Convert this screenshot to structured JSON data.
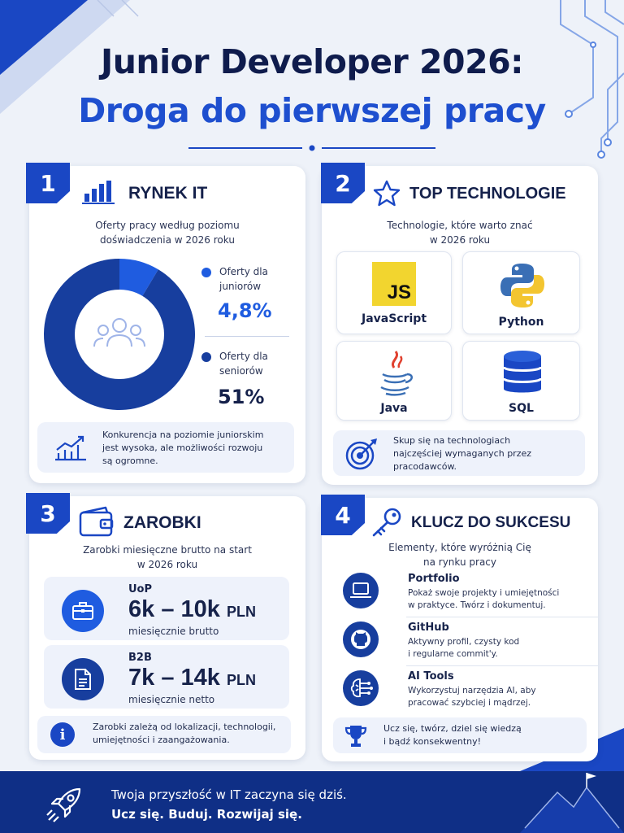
{
  "header": {
    "title_line1": "Junior Developer 2026:",
    "title_line2": "Droga do pierwszej pracy"
  },
  "colors": {
    "primary_blue": "#1a47c4",
    "navy": "#173e9e",
    "dark_text": "#0f1c4d",
    "accent_blue": "#1e4fcf",
    "footer_bg": "#0f2f86"
  },
  "section1": {
    "number": "1",
    "icon": "bar-chart-icon",
    "title": "RYNEK IT",
    "subtitle_line1": "Oferty pracy według poziomu",
    "subtitle_line2": "doświadczenia w 2026 roku",
    "chart_data": {
      "type": "pie",
      "categories": [
        "Oferty dla juniorów",
        "Oferty dla seniorów"
      ],
      "values": [
        4.8,
        51
      ],
      "value_labels": [
        "4,8%",
        "51%"
      ],
      "colors": [
        "#1f5ce0",
        "#173e9e"
      ]
    },
    "legend": [
      {
        "label_line1": "Oferty dla",
        "label_line2": "juniorów",
        "value": "4,8%",
        "color": "#1f5ce0"
      },
      {
        "label_line1": "Oferty dla",
        "label_line2": "seniorów",
        "value": "51%",
        "color": "#173e9e"
      }
    ],
    "note_icon": "trend-up-icon",
    "note_line1": "Konkurencja na poziomie juniorskim",
    "note_line2": "jest wysoka, ale możliwości rozwoju",
    "note_line3": "są ogromne."
  },
  "section2": {
    "number": "2",
    "icon": "star-icon",
    "title": "TOP TECHNOLOGIE",
    "subtitle_line1": "Technologie, które warto znać",
    "subtitle_line2": "w 2026 roku",
    "tech": [
      {
        "name": "JavaScript",
        "icon": "javascript-logo-icon",
        "logo_text": "JS"
      },
      {
        "name": "Python",
        "icon": "python-logo-icon"
      },
      {
        "name": "Java",
        "icon": "java-logo-icon"
      },
      {
        "name": "SQL",
        "icon": "database-icon"
      }
    ],
    "note_icon": "target-icon",
    "note_line1": "Skup się na technologiach",
    "note_line2": "najczęściej wymaganych przez",
    "note_line3": "pracodawców."
  },
  "section3": {
    "number": "3",
    "icon": "wallet-icon",
    "title": "ZAROBKI",
    "subtitle_line1": "Zarobki miesięczne brutto na start",
    "subtitle_line2": "w 2026 roku",
    "pay": [
      {
        "type": "UoP",
        "value": "6k – 10k",
        "currency": "PLN",
        "note": "miesięcznie brutto",
        "icon": "briefcase-icon"
      },
      {
        "type": "B2B",
        "value": "7k – 14k",
        "currency": "PLN",
        "note": "miesięcznie netto",
        "icon": "document-icon"
      }
    ],
    "note_icon": "info-icon",
    "note_line1": "Zarobki zależą od lokalizacji, technologii,",
    "note_line2": "umiejętności i zaangażowania."
  },
  "section4": {
    "number": "4",
    "icon": "key-icon",
    "title": "KLUCZ DO SUKCESU",
    "subtitle_line1": "Elementy, które wyróżnią Cię",
    "subtitle_line2": "na rynku pracy",
    "items": [
      {
        "title": "Portfolio",
        "desc_line1": "Pokaż swoje projekty i umiejętności",
        "desc_line2": "w praktyce. Twórz i dokumentuj.",
        "icon": "laptop-icon"
      },
      {
        "title": "GitHub",
        "desc_line1": "Aktywny profil, czysty kod",
        "desc_line2": "i regularne commit'y.",
        "icon": "github-icon"
      },
      {
        "title": "AI Tools",
        "desc_line1": "Wykorzystuj narzędzia AI, aby",
        "desc_line2": "pracować szybciej i mądrzej.",
        "icon": "ai-brain-icon"
      }
    ],
    "note_icon": "trophy-icon",
    "note_line1": "Ucz się, twórz, dziel się wiedzą",
    "note_line2": "i bądź konsekwentny!"
  },
  "footer": {
    "icon": "rocket-icon",
    "line1": "Twoja przyszłość w IT zaczyna się dziś.",
    "line2": "Ucz się. Buduj. Rozwijaj się.",
    "decor_icon": "mountain-flag-icon"
  }
}
